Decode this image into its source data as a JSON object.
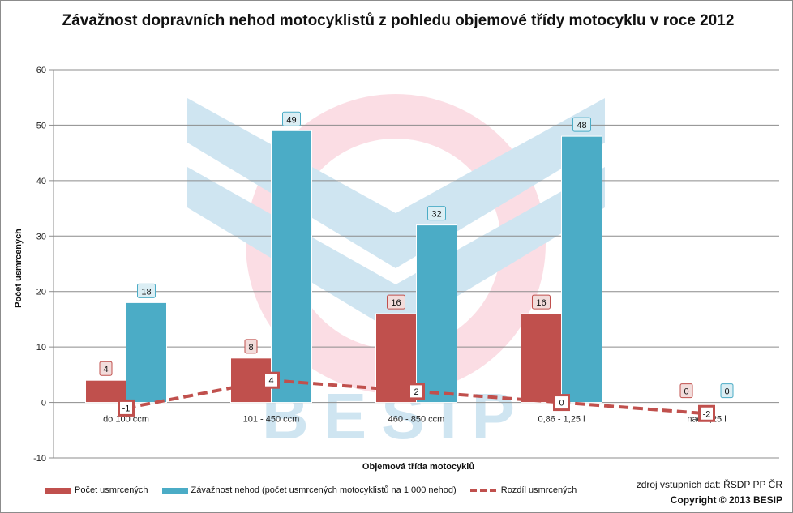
{
  "chart_data": {
    "type": "bar",
    "title": "Závažnost dopravních nehod motocyklistů z pohledu objemové třídy motocyklu v roce 2012",
    "xlabel": "Objemová třída motocyklů",
    "ylabel": "Počet usmrcených",
    "ylim": [
      -10,
      60
    ],
    "yticks": [
      -10,
      0,
      10,
      20,
      30,
      40,
      50,
      60
    ],
    "grid": true,
    "legend_position": "bottom",
    "categories": [
      "do 100 ccm",
      "101 - 450 ccm",
      "460 - 850 ccm",
      "0,86 - 1,25 l",
      "nad 1,25 l"
    ],
    "series": [
      {
        "name": "Počet usmrcených",
        "kind": "bar",
        "color": "#c0504d",
        "values": [
          4,
          8,
          16,
          16,
          0
        ]
      },
      {
        "name": "Závažnost nehod (počet usmrcených motocyklistů na 1 000 nehod)",
        "kind": "bar",
        "color": "#4bacc6",
        "values": [
          18,
          49,
          32,
          48,
          0
        ]
      },
      {
        "name": "Rozdíl usmrcených",
        "kind": "line",
        "style": "dashed",
        "color": "#c0504d",
        "values": [
          -1,
          4,
          2,
          0,
          -2
        ]
      }
    ]
  },
  "source_text": "zdroj vstupních dat: ŘSDP PP ČR",
  "copyright_text": "Copyright © 2013  BESIP",
  "watermark_text": "BESIP"
}
